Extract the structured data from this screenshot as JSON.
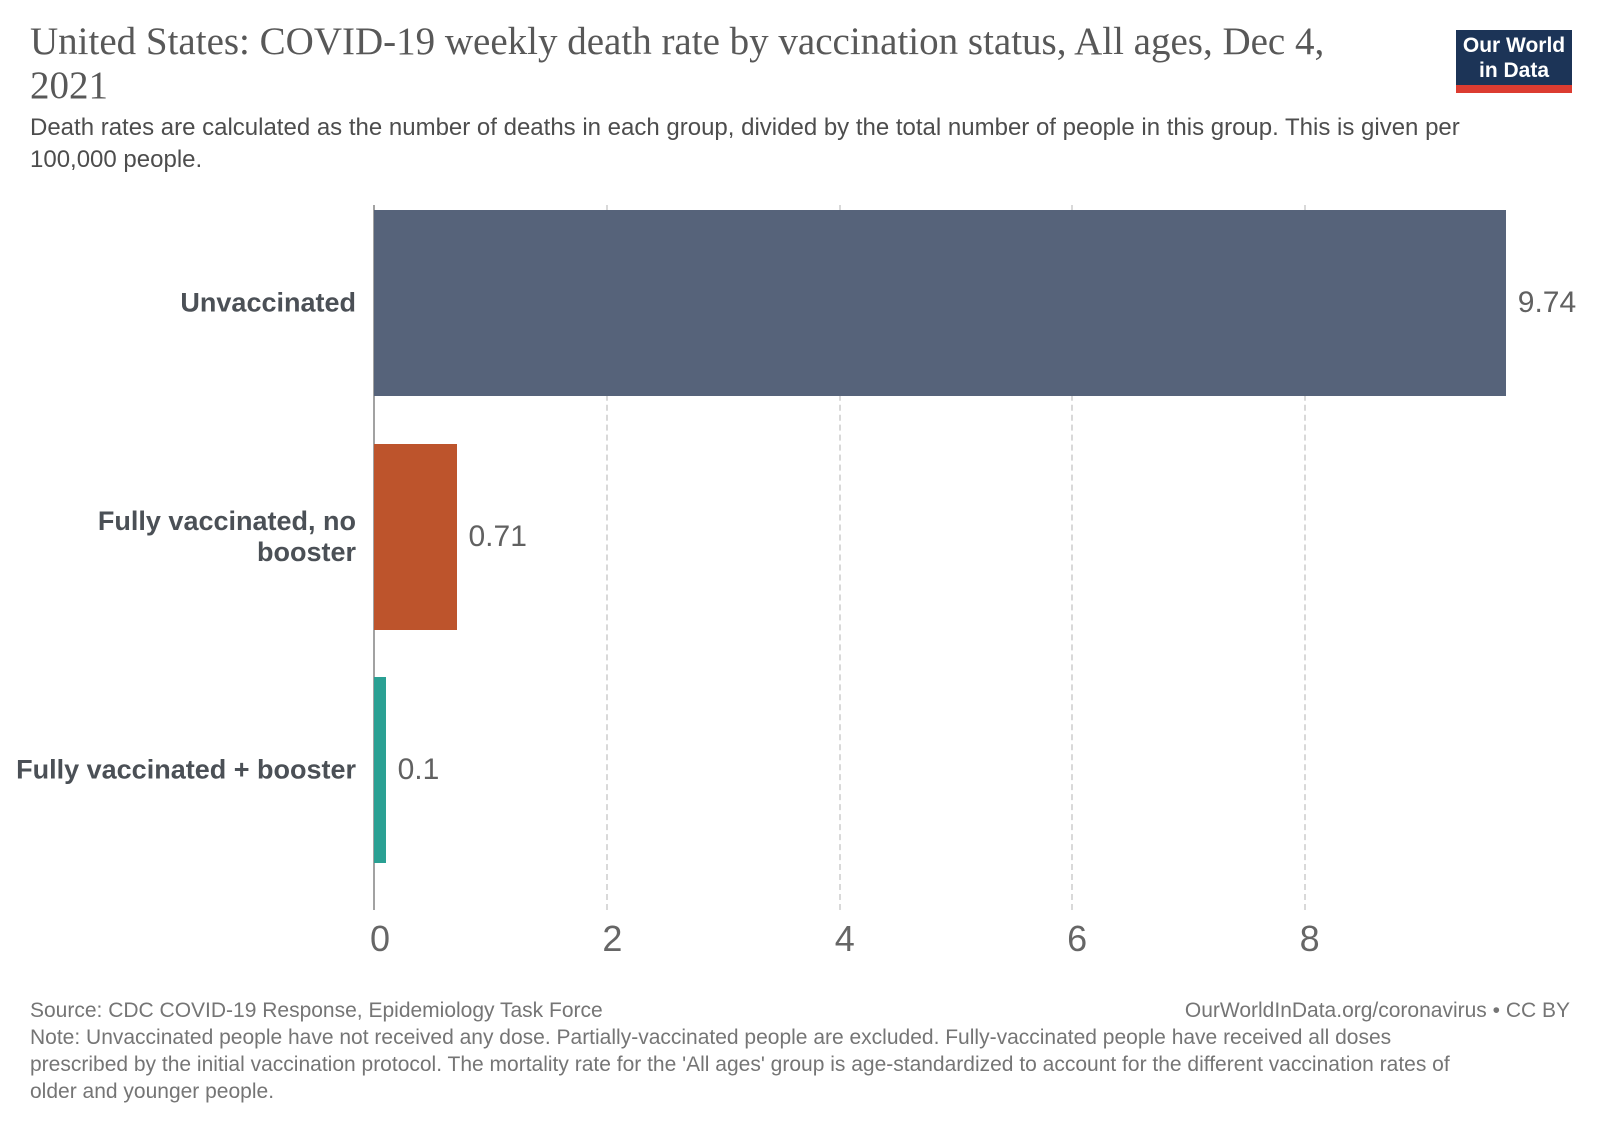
{
  "header": {
    "title": "United States: COVID-19 weekly death rate by vaccination status, All ages, Dec 4, 2021",
    "subtitle": "Death rates are calculated as the number of deaths in each group, divided by the total number of people in this group. This is given per 100,000 people.",
    "logo": {
      "line1": "Our World",
      "line2": "in Data",
      "bg_color": "#1c3457",
      "accent_color": "#dc3c31"
    }
  },
  "chart_data": {
    "type": "bar",
    "orientation": "horizontal",
    "title": "United States: COVID-19 weekly death rate by vaccination status, All ages, Dec 4, 2021",
    "xlabel": "",
    "ylabel": "",
    "categories": [
      "Unvaccinated",
      "Fully vaccinated, no booster",
      "Fully vaccinated + booster"
    ],
    "values": [
      9.74,
      0.71,
      0.1
    ],
    "value_labels": [
      "9.74",
      "0.71",
      "0.1"
    ],
    "bar_colors": [
      "#56637a",
      "#bd542c",
      "#2aa093"
    ],
    "x_ticks": [
      0,
      2,
      4,
      6,
      8
    ],
    "xlim": [
      0,
      10.03
    ],
    "grid": "dashed-vertical-gridlines",
    "legend": "none",
    "axis_line_color": "#a2a2a2",
    "gridline_color": "#d9d9d9"
  },
  "footer": {
    "source": "Source: CDC COVID-19 Response, Epidemiology Task Force",
    "link": "OurWorldInData.org/coronavirus • CC BY",
    "note": "Note: Unvaccinated people have not received any dose. Partially-vaccinated people are excluded. Fully-vaccinated people have received all doses prescribed by the initial vaccination protocol. The mortality rate for the 'All ages' group is age-standardized to account for the different vaccination rates of older and younger people."
  }
}
